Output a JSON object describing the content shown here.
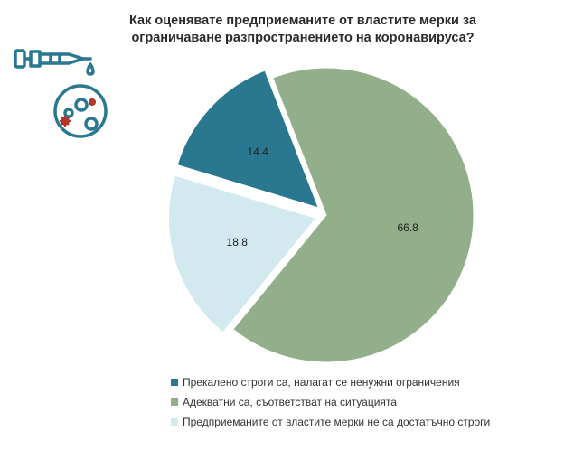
{
  "title": "Как оценявате предприеманите от властите мерки за ограничаване разпространението на коронавируса?",
  "chart_data": {
    "type": "pie",
    "title": "Как оценявате предприеманите от властите мерки за ограничаване разпространението на коронавируса?",
    "start_angle_deg": -21.3,
    "legend_position": "bottom-center",
    "slices": [
      {
        "name": "Адекватни са, съответстват на ситуацията",
        "value": 66.8,
        "label": "66.8",
        "color": "#92ae8a",
        "exploded": false
      },
      {
        "name": "Предприеманите от властите мерки не са достатъчно строги",
        "value": 18.8,
        "label": "18.8",
        "color": "#d2e9f0",
        "exploded": true
      },
      {
        "name": "Прекалено строги са, налагат се ненужни ограничения",
        "value": 14.4,
        "label": "14.4",
        "color": "#2a7890",
        "exploded": true
      }
    ],
    "legend_order": [
      2,
      0,
      1
    ]
  },
  "icon": {
    "name": "pipette-virus-icon",
    "color": "#2a7890",
    "accent": "#b5352a"
  }
}
